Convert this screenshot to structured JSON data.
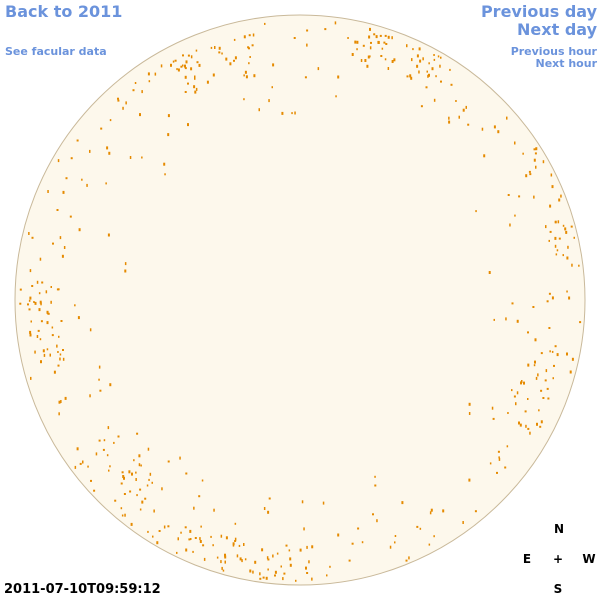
{
  "nav": {
    "back_year": "Back to 2011",
    "facular_data": "See facular data",
    "previous_day": "Previous day",
    "next_day": "Next day",
    "previous_hour": "Previous hour",
    "next_hour": "Next hour"
  },
  "timestamp": "2011-07-10T09:59:12",
  "compass": {
    "north": "N",
    "east": "E",
    "center": "+",
    "west": "W",
    "south": "S"
  }
}
